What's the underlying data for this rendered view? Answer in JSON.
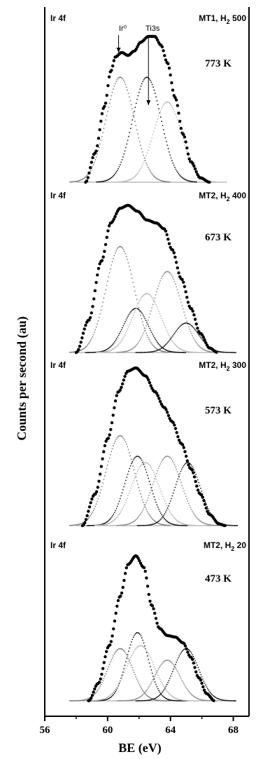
{
  "chart_data": {
    "type": "line",
    "ylabel": "Counts per second (au)",
    "xlabel": "BE (eV)",
    "xlim": [
      56,
      69
    ],
    "xticks": [
      56,
      60,
      64,
      68
    ],
    "grid": false,
    "panels": [
      {
        "spectrum": "Ir 4f",
        "sample_prefix": "MT1, H",
        "sample_sub": "2",
        "sample_suffix": " 500",
        "temperature": "773 K",
        "markers": [
          {
            "label": "Ir⁰",
            "x": 60.7
          },
          {
            "label": "Ti3s",
            "x": 62.6
          }
        ],
        "components": [
          {
            "center": 60.8,
            "amp": 0.72,
            "width": 0.9
          },
          {
            "center": 62.5,
            "amp": 0.72,
            "width": 0.9
          },
          {
            "center": 63.8,
            "amp": 0.55,
            "width": 0.9
          }
        ],
        "envelope": [
          [
            58.6,
            0.0
          ],
          [
            59.2,
            0.2
          ],
          [
            59.8,
            0.52
          ],
          [
            60.2,
            0.76
          ],
          [
            60.5,
            0.86
          ],
          [
            60.9,
            0.89
          ],
          [
            61.3,
            0.87
          ],
          [
            61.7,
            0.9
          ],
          [
            62.1,
            0.96
          ],
          [
            62.6,
            1.0
          ],
          [
            63.0,
            1.0
          ],
          [
            63.4,
            0.94
          ],
          [
            63.8,
            0.82
          ],
          [
            64.3,
            0.58
          ],
          [
            64.8,
            0.33
          ],
          [
            65.3,
            0.14
          ],
          [
            65.9,
            0.03
          ],
          [
            66.5,
            0.0
          ]
        ]
      },
      {
        "spectrum": "Ir 4f",
        "sample_prefix": "MT2, H",
        "sample_sub": "2",
        "sample_suffix": " 400",
        "temperature": "673 K",
        "markers": [],
        "components": [
          {
            "center": 60.8,
            "amp": 0.72,
            "width": 0.9
          },
          {
            "center": 61.8,
            "amp": 0.3,
            "width": 0.8
          },
          {
            "center": 62.5,
            "amp": 0.4,
            "width": 0.9
          },
          {
            "center": 63.8,
            "amp": 0.55,
            "width": 0.9
          },
          {
            "center": 65.0,
            "amp": 0.2,
            "width": 0.8
          }
        ],
        "envelope": [
          [
            58.0,
            0.0
          ],
          [
            58.8,
            0.22
          ],
          [
            59.6,
            0.62
          ],
          [
            60.2,
            0.88
          ],
          [
            60.8,
            0.98
          ],
          [
            61.3,
            1.0
          ],
          [
            61.9,
            0.96
          ],
          [
            62.5,
            0.9
          ],
          [
            63.1,
            0.88
          ],
          [
            63.6,
            0.84
          ],
          [
            64.1,
            0.7
          ],
          [
            64.7,
            0.5
          ],
          [
            65.3,
            0.3
          ],
          [
            65.9,
            0.13
          ],
          [
            66.5,
            0.03
          ],
          [
            67.0,
            0.0
          ]
        ]
      },
      {
        "spectrum": "Ir 4f",
        "sample_prefix": "MT2, H",
        "sample_sub": "2",
        "sample_suffix": " 300",
        "temperature": "573 K",
        "markers": [],
        "components": [
          {
            "center": 60.8,
            "amp": 0.57,
            "width": 0.9
          },
          {
            "center": 61.9,
            "amp": 0.44,
            "width": 0.8
          },
          {
            "center": 62.4,
            "amp": 0.4,
            "width": 0.9
          },
          {
            "center": 63.8,
            "amp": 0.44,
            "width": 0.9
          },
          {
            "center": 65.1,
            "amp": 0.4,
            "width": 0.8
          }
        ],
        "envelope": [
          [
            58.4,
            0.0
          ],
          [
            59.2,
            0.2
          ],
          [
            60.0,
            0.55
          ],
          [
            60.7,
            0.85
          ],
          [
            61.3,
            0.98
          ],
          [
            61.8,
            1.0
          ],
          [
            62.4,
            0.95
          ],
          [
            63.0,
            0.85
          ],
          [
            63.6,
            0.75
          ],
          [
            64.1,
            0.66
          ],
          [
            64.7,
            0.52
          ],
          [
            65.3,
            0.36
          ],
          [
            65.9,
            0.2
          ],
          [
            66.5,
            0.07
          ],
          [
            67.1,
            0.01
          ],
          [
            67.5,
            0.0
          ]
        ]
      },
      {
        "spectrum": "Ir 4f",
        "sample_prefix": "MT2, H",
        "sample_sub": "2",
        "sample_suffix": " 20",
        "temperature": "473 K",
        "markers": [],
        "components": [
          {
            "center": 60.8,
            "amp": 0.36,
            "width": 0.8
          },
          {
            "center": 61.9,
            "amp": 0.47,
            "width": 0.7
          },
          {
            "center": 62.1,
            "amp": 0.38,
            "width": 0.9
          },
          {
            "center": 63.8,
            "amp": 0.28,
            "width": 0.8
          },
          {
            "center": 65.0,
            "amp": 0.36,
            "width": 0.8
          }
        ],
        "envelope": [
          [
            58.8,
            0.0
          ],
          [
            59.4,
            0.12
          ],
          [
            60.1,
            0.38
          ],
          [
            60.8,
            0.72
          ],
          [
            61.3,
            0.94
          ],
          [
            61.8,
            1.0
          ],
          [
            62.3,
            0.92
          ],
          [
            62.8,
            0.66
          ],
          [
            63.3,
            0.5
          ],
          [
            63.8,
            0.45
          ],
          [
            64.3,
            0.44
          ],
          [
            64.8,
            0.4
          ],
          [
            65.3,
            0.3
          ],
          [
            65.8,
            0.16
          ],
          [
            66.3,
            0.05
          ],
          [
            66.8,
            0.0
          ]
        ]
      }
    ]
  }
}
